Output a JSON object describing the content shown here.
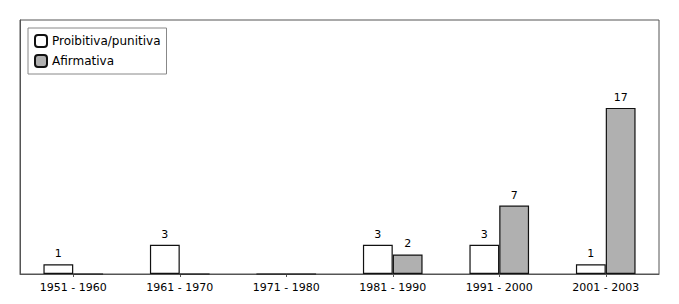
{
  "chart_data": {
    "type": "bar",
    "categories": [
      "1951 - 1960",
      "1961 - 1970",
      "1971 - 1980",
      "1981 - 1990",
      "1991 - 2000",
      "2001 - 2003"
    ],
    "series": [
      {
        "name": "Proibitiva/punitiva",
        "color": "#ffffff",
        "values": [
          1,
          3,
          0,
          3,
          3,
          1
        ]
      },
      {
        "name": "Afirmativa",
        "color": "#b0b0b0",
        "values": [
          0,
          0,
          0,
          2,
          7,
          17
        ]
      }
    ],
    "ylim": [
      0,
      26
    ],
    "grid": false,
    "legend": "upper left",
    "data_labels": true,
    "tick_labels": "x"
  }
}
